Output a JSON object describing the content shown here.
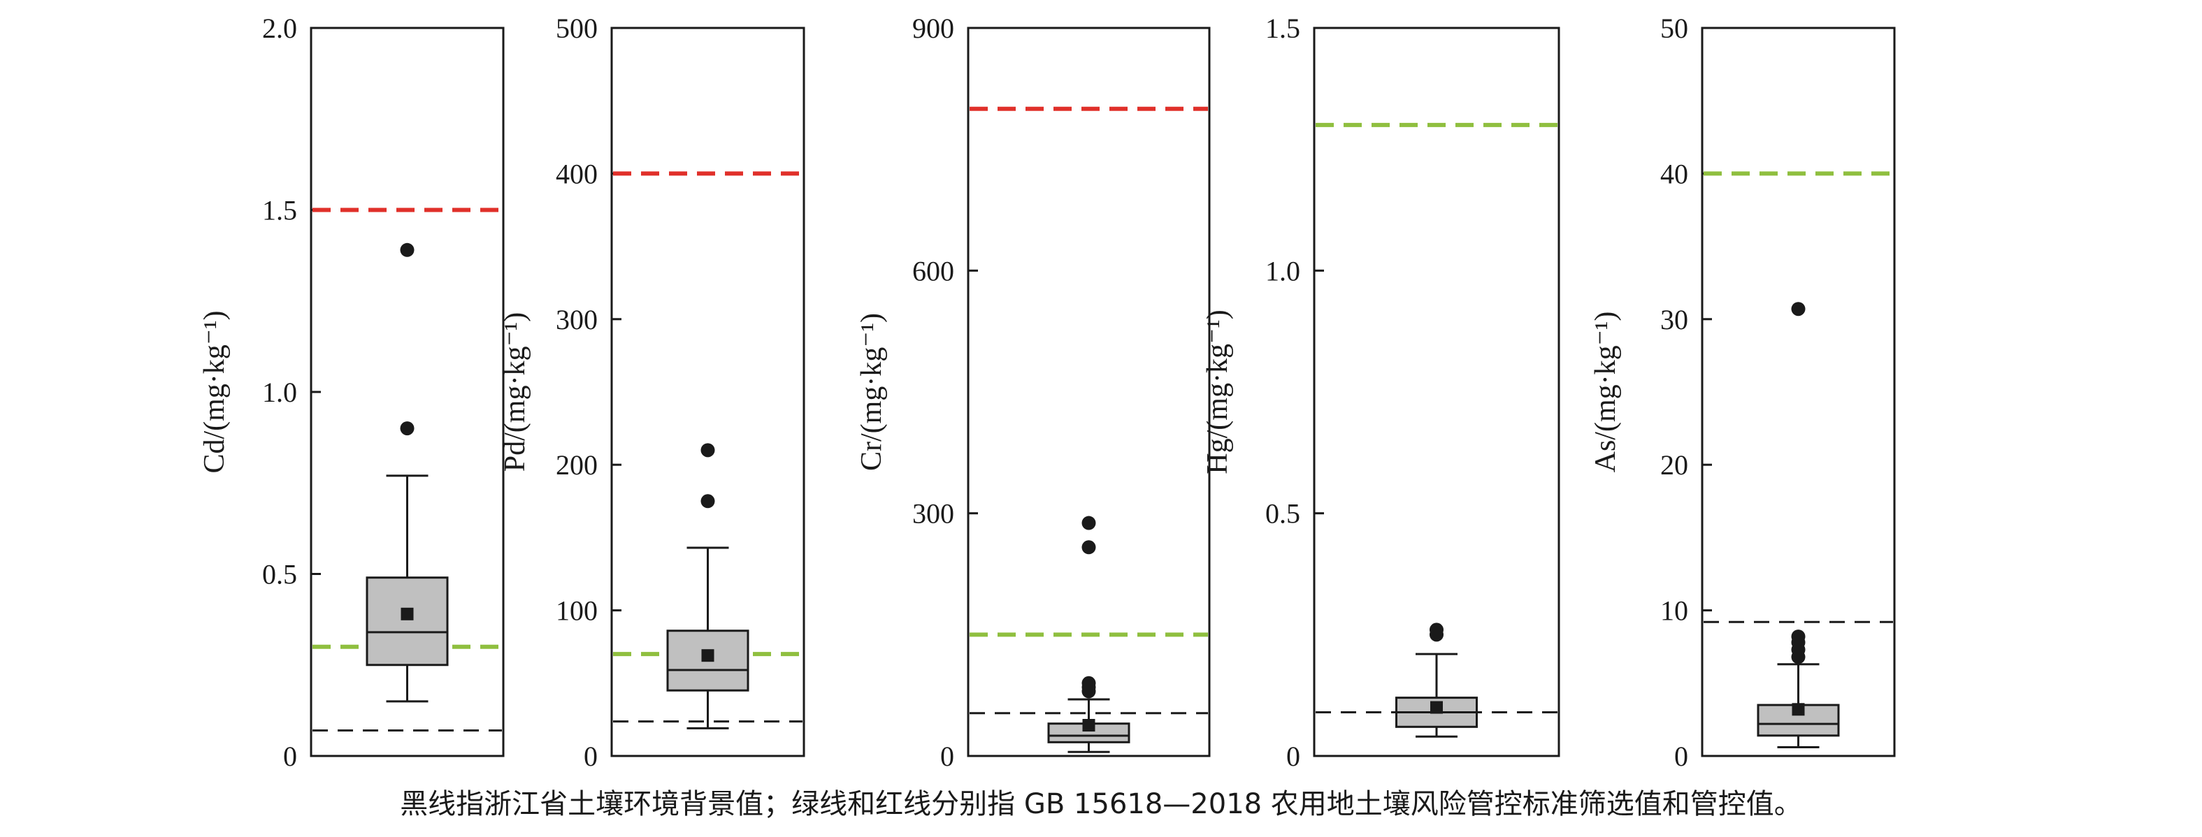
{
  "caption": "黑线指浙江省土壤环境背景值；绿线和红线分别指 GB 15618—2018 农用地土壤风险管控标准筛选值和管控值。",
  "colors": {
    "background_line": "#1a1a1a",
    "screening_line": "#8fbf3f",
    "control_line": "#e0302a",
    "box_fill": "#c0c0c0",
    "axis": "#1a1a1a"
  },
  "chart_data": [
    {
      "type": "box",
      "element": "Cd",
      "ylabel": "Cd/(mg·kg⁻¹)",
      "ylim": [
        0,
        2.0
      ],
      "yticks": [
        "0",
        "0.5",
        "1.0",
        "1.5",
        "2.0"
      ],
      "ytick_values": [
        0,
        0.5,
        1.0,
        1.5,
        2.0
      ],
      "box": {
        "whisker_low": 0.15,
        "q1": 0.25,
        "median": 0.34,
        "q3": 0.49,
        "whisker_high": 0.77,
        "mean": 0.39
      },
      "outliers": [
        0.9,
        1.39
      ],
      "lines": {
        "background": 0.07,
        "screening": 0.3,
        "control": 1.5
      }
    },
    {
      "type": "box",
      "element": "Pd",
      "ylabel": "Pd/(mg·kg⁻¹)",
      "ylim": [
        0,
        500
      ],
      "yticks": [
        "0",
        "100",
        "200",
        "300",
        "400",
        "500"
      ],
      "ytick_values": [
        0,
        100,
        200,
        300,
        400,
        500
      ],
      "box": {
        "whisker_low": 19,
        "q1": 45,
        "median": 59,
        "q3": 86,
        "whisker_high": 143,
        "mean": 69
      },
      "outliers": [
        175,
        210
      ],
      "lines": {
        "background": 23.7,
        "screening": 70,
        "control": 400
      }
    },
    {
      "type": "box",
      "element": "Cr",
      "ylabel": "Cr/(mg·kg⁻¹)",
      "ylim": [
        0,
        900
      ],
      "yticks": [
        "0",
        "300",
        "600",
        "900"
      ],
      "ytick_values": [
        0,
        300,
        600,
        900
      ],
      "box": {
        "whisker_low": 5,
        "q1": 17,
        "median": 25,
        "q3": 40,
        "whisker_high": 70,
        "mean": 38
      },
      "outliers": [
        80,
        85,
        90,
        258,
        288
      ],
      "lines": {
        "background": 52.9,
        "screening": 150,
        "control": 800
      }
    },
    {
      "type": "box",
      "element": "Hg",
      "ylabel": "Hg/(mg·kg⁻¹)",
      "ylim": [
        0,
        1.5
      ],
      "yticks": [
        "0",
        "0.5",
        "1.0",
        "1.5"
      ],
      "ytick_values": [
        0,
        0.5,
        1.0,
        1.5
      ],
      "box": {
        "whisker_low": 0.04,
        "q1": 0.06,
        "median": 0.09,
        "q3": 0.12,
        "whisker_high": 0.21,
        "mean": 0.1
      },
      "outliers": [
        0.25,
        0.26
      ],
      "lines": {
        "background": 0.09,
        "screening": 1.3,
        "control": 1.3
      }
    },
    {
      "type": "box",
      "element": "As",
      "ylabel": "As/(mg·kg⁻¹)",
      "ylim": [
        0,
        50
      ],
      "yticks": [
        "0",
        "10",
        "20",
        "30",
        "40",
        "50"
      ],
      "ytick_values": [
        0,
        10,
        20,
        30,
        40,
        50
      ],
      "box": {
        "whisker_low": 0.6,
        "q1": 1.4,
        "median": 2.2,
        "q3": 3.5,
        "whisker_high": 6.3,
        "mean": 3.2
      },
      "outliers": [
        6.8,
        7.3,
        7.8,
        8.2,
        30.7
      ],
      "lines": {
        "background": 9.2,
        "screening": 40,
        "control": 40
      }
    }
  ]
}
